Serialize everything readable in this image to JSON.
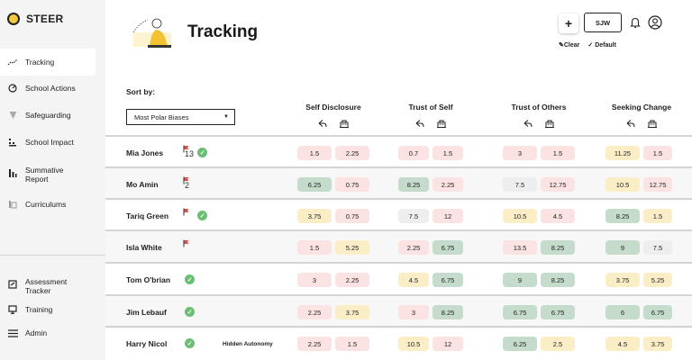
{
  "brand": {
    "name": "STEER"
  },
  "sidebar": {
    "items": [
      {
        "label": "Tracking",
        "icon": "tracking-icon"
      },
      {
        "label": "School Actions",
        "icon": "target-icon"
      },
      {
        "label": "Safeguarding",
        "icon": "shield-icon"
      },
      {
        "label": "School Impact",
        "icon": "impact-chart-icon"
      },
      {
        "label": "Summative Report",
        "icon": "bar-chart-icon"
      },
      {
        "label": "Curriculums",
        "icon": "book-icon"
      }
    ],
    "bottom_items": [
      {
        "label": "Assessment Tracker",
        "icon": "assessment-icon"
      },
      {
        "label": "Training",
        "icon": "monitor-icon"
      },
      {
        "label": "Admin",
        "icon": "menu-icon"
      }
    ]
  },
  "header": {
    "title": "Tracking",
    "add_label": "+",
    "user_initials": "SJW",
    "clear_label": "Clear",
    "default_label": "Default"
  },
  "sort": {
    "label": "Sort by:",
    "selected": "Most Polar Biases"
  },
  "columns": [
    {
      "title": "Self Disclosure"
    },
    {
      "title": "Trust of Self"
    },
    {
      "title": "Trust of Others"
    },
    {
      "title": "Seeking Change"
    }
  ],
  "colors": {
    "pink": "#fbe3e4",
    "yellow": "#fbeec7",
    "green": "#c5dccd",
    "grey": "#eeeeee",
    "check": "#6bbf73",
    "flag": "#d9534f"
  },
  "rows": [
    {
      "name": "Mia Jones",
      "flag": true,
      "flag_count": "13",
      "check": true,
      "note": "",
      "cells": [
        [
          "1.5",
          "2.25"
        ],
        [
          "0.7",
          "1.5"
        ],
        [
          "3",
          "1.5"
        ],
        [
          "11.25",
          "1.5"
        ]
      ],
      "colors": [
        [
          "pink",
          "pink"
        ],
        [
          "pink",
          "pink"
        ],
        [
          "pink",
          "pink"
        ],
        [
          "yellow",
          "pink"
        ]
      ]
    },
    {
      "name": "Mo Amin",
      "flag": true,
      "flag_count": "2",
      "check": false,
      "note": "",
      "cells": [
        [
          "6.25",
          "0.75"
        ],
        [
          "8.25",
          "2.25"
        ],
        [
          "7.5",
          "12.75"
        ],
        [
          "10.5",
          "12.75"
        ]
      ],
      "colors": [
        [
          "green",
          "pink"
        ],
        [
          "green",
          "pink"
        ],
        [
          "grey",
          "pink"
        ],
        [
          "yellow",
          "pink"
        ]
      ]
    },
    {
      "name": "Tariq Green",
      "flag": true,
      "flag_count": "",
      "check": true,
      "note": "",
      "cells": [
        [
          "3.75",
          "0.75"
        ],
        [
          "7.5",
          "12"
        ],
        [
          "10.5",
          "4.5"
        ],
        [
          "8.25",
          "1.5"
        ]
      ],
      "colors": [
        [
          "yellow",
          "pink"
        ],
        [
          "grey",
          "pink"
        ],
        [
          "yellow",
          "pink"
        ],
        [
          "green",
          "yellow"
        ]
      ]
    },
    {
      "name": "Isla White",
      "flag": true,
      "flag_count": "",
      "check": false,
      "note": "",
      "cells": [
        [
          "1.5",
          "5.25"
        ],
        [
          "2.25",
          "6.75"
        ],
        [
          "13.5",
          "8.25"
        ],
        [
          "9",
          "7.5"
        ]
      ],
      "colors": [
        [
          "pink",
          "yellow"
        ],
        [
          "pink",
          "green"
        ],
        [
          "pink",
          "green"
        ],
        [
          "green",
          "grey"
        ]
      ]
    },
    {
      "name": "Tom O'brian",
      "flag": false,
      "flag_count": "",
      "check": true,
      "note": "",
      "cells": [
        [
          "3",
          "2.25"
        ],
        [
          "4.5",
          "6.75"
        ],
        [
          "9",
          "8.25"
        ],
        [
          "3.75",
          "5.25"
        ]
      ],
      "colors": [
        [
          "pink",
          "pink"
        ],
        [
          "yellow",
          "green"
        ],
        [
          "green",
          "green"
        ],
        [
          "yellow",
          "yellow"
        ]
      ]
    },
    {
      "name": "Jim Lebauf",
      "flag": false,
      "flag_count": "",
      "check": true,
      "note": "",
      "cells": [
        [
          "2.25",
          "3.75"
        ],
        [
          "3",
          "8.25"
        ],
        [
          "6.75",
          "6.75"
        ],
        [
          "6",
          "6.75"
        ]
      ],
      "colors": [
        [
          "pink",
          "yellow"
        ],
        [
          "pink",
          "green"
        ],
        [
          "green",
          "green"
        ],
        [
          "green",
          "green"
        ]
      ]
    },
    {
      "name": "Harry Nicol",
      "flag": false,
      "flag_count": "",
      "check": true,
      "note": "Hidden Autonomy",
      "cells": [
        [
          "2.25",
          "1.5"
        ],
        [
          "10.5",
          "12"
        ],
        [
          "6.25",
          "2.5"
        ],
        [
          "4.5",
          "3.75"
        ]
      ],
      "colors": [
        [
          "pink",
          "pink"
        ],
        [
          "yellow",
          "pink"
        ],
        [
          "green",
          "yellow"
        ],
        [
          "yellow",
          "yellow"
        ]
      ]
    }
  ]
}
